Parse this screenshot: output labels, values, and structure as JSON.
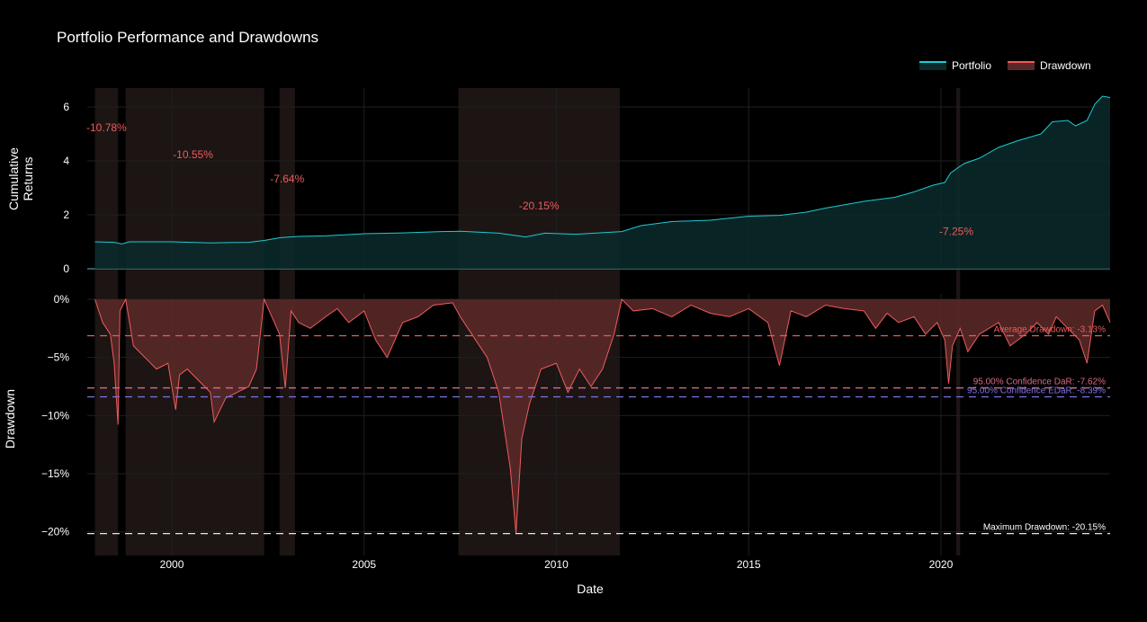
{
  "title": "Portfolio Performance and Drawdowns",
  "legend": {
    "portfolio": "Portfolio",
    "drawdown": "Drawdown"
  },
  "colors": {
    "portfolio_line": "#1ecbd1",
    "portfolio_fill": "#0b2a2b",
    "drawdown_line": "#ef5b5b",
    "drawdown_fill": "#5a2828",
    "shade": "#1c1514",
    "avg_line": "#ef5b5b",
    "dar_line": "#d96a86",
    "edar_line": "#7f73e6",
    "max_line": "#e6e6e6",
    "grid": "#1f1f1f"
  },
  "chart_data": [
    {
      "type": "area",
      "name": "Portfolio",
      "ylabel": "Cumulative\nReturns",
      "ylim": [
        0,
        6.7
      ],
      "yticks": [
        0,
        2,
        4,
        6
      ],
      "x": [
        1998.0,
        1998.5,
        1998.7,
        1998.9,
        1999.5,
        2000.0,
        2000.5,
        2001.0,
        2001.5,
        2002.0,
        2002.4,
        2002.8,
        2003.3,
        2004.0,
        2005.0,
        2006.0,
        2007.0,
        2007.5,
        2008.5,
        2009.2,
        2009.7,
        2010.5,
        2011.0,
        2011.7,
        2012.2,
        2013.0,
        2014.0,
        2015.0,
        2015.8,
        2016.5,
        2017.0,
        2018.0,
        2018.8,
        2019.3,
        2019.8,
        2020.1,
        2020.25,
        2020.6,
        2021.0,
        2021.5,
        2022.0,
        2022.6,
        2022.9,
        2023.3,
        2023.5,
        2023.8,
        2024.0,
        2024.2,
        2024.4
      ],
      "y": [
        1.0,
        0.98,
        0.92,
        1.0,
        1.0,
        1.0,
        0.98,
        0.96,
        0.97,
        0.98,
        1.05,
        1.15,
        1.2,
        1.22,
        1.3,
        1.33,
        1.38,
        1.39,
        1.32,
        1.18,
        1.32,
        1.28,
        1.32,
        1.38,
        1.6,
        1.75,
        1.8,
        1.95,
        1.98,
        2.1,
        2.25,
        2.5,
        2.65,
        2.85,
        3.1,
        3.2,
        3.55,
        3.9,
        4.1,
        4.5,
        4.75,
        5.0,
        5.45,
        5.5,
        5.3,
        5.5,
        6.1,
        6.4,
        6.35
      ],
      "annotations": [
        {
          "text": "-10.78%",
          "x": 1998.3,
          "y": 5.1
        },
        {
          "text": "-10.55%",
          "x": 2000.55,
          "y": 4.1
        },
        {
          "text": "-7.64%",
          "x": 2003.0,
          "y": 3.2
        },
        {
          "text": "-20.15%",
          "x": 2009.55,
          "y": 2.2
        },
        {
          "text": "-7.25%",
          "x": 2020.4,
          "y": 1.25
        }
      ],
      "drawdown_periods": [
        [
          1998.0,
          1998.6
        ],
        [
          1998.8,
          2002.4
        ],
        [
          2002.8,
          2003.2
        ],
        [
          2007.45,
          2011.65
        ],
        [
          2020.4,
          2020.5
        ]
      ]
    },
    {
      "type": "area",
      "name": "Drawdown",
      "xlabel": "Date",
      "ylabel": "Drawdown",
      "ylim": [
        -22,
        0.5
      ],
      "yticks": [
        0,
        -5,
        -10,
        -15,
        -20
      ],
      "ytick_labels": [
        "0%",
        "−5%",
        "−10%",
        "−15%",
        "−20%"
      ],
      "xticks": [
        2000,
        2005,
        2010,
        2015,
        2020
      ],
      "xlim": [
        1997.8,
        2024.4
      ],
      "x": [
        1998.0,
        1998.2,
        1998.4,
        1998.5,
        1998.6,
        1998.65,
        1998.8,
        1999.0,
        1999.3,
        1999.6,
        1999.9,
        2000.1,
        2000.2,
        2000.4,
        2000.7,
        2001.0,
        2001.1,
        2001.4,
        2001.7,
        2002.0,
        2002.2,
        2002.4,
        2002.6,
        2002.8,
        2002.95,
        2003.1,
        2003.3,
        2003.6,
        2004.0,
        2004.3,
        2004.6,
        2005.0,
        2005.3,
        2005.6,
        2006.0,
        2006.4,
        2006.8,
        2007.3,
        2007.5,
        2007.8,
        2008.2,
        2008.5,
        2008.8,
        2008.95,
        2009.1,
        2009.3,
        2009.6,
        2010.0,
        2010.3,
        2010.6,
        2010.9,
        2011.2,
        2011.5,
        2011.7,
        2012.0,
        2012.5,
        2013.0,
        2013.5,
        2014.0,
        2014.5,
        2015.0,
        2015.5,
        2015.8,
        2016.1,
        2016.5,
        2017.0,
        2017.5,
        2018.0,
        2018.3,
        2018.6,
        2018.9,
        2019.3,
        2019.6,
        2019.9,
        2020.1,
        2020.2,
        2020.3,
        2020.5,
        2020.7,
        2021.0,
        2021.5,
        2021.8,
        2022.2,
        2022.5,
        2022.8,
        2023.0,
        2023.3,
        2023.6,
        2023.8,
        2024.0,
        2024.2,
        2024.4
      ],
      "y": [
        0,
        -2.0,
        -3.0,
        -5.5,
        -10.78,
        -1.0,
        0,
        -4.0,
        -5.0,
        -6.0,
        -5.5,
        -9.5,
        -6.5,
        -6.0,
        -7.0,
        -8.0,
        -10.55,
        -8.5,
        -8.0,
        -7.5,
        -6.0,
        0,
        -1.5,
        -3.0,
        -7.64,
        -1.0,
        -2.0,
        -2.5,
        -1.5,
        -0.8,
        -2.0,
        -1.0,
        -3.5,
        -5.0,
        -2.0,
        -1.5,
        -0.5,
        -0.3,
        -1.5,
        -3.0,
        -5.0,
        -8.0,
        -14.5,
        -20.15,
        -12.0,
        -9.0,
        -6.0,
        -5.5,
        -8.0,
        -6.0,
        -7.5,
        -6.0,
        -3.0,
        0,
        -1.0,
        -0.8,
        -1.5,
        -0.5,
        -1.2,
        -1.5,
        -0.8,
        -2.0,
        -5.7,
        -1.0,
        -1.5,
        -0.5,
        -0.8,
        -1.0,
        -2.5,
        -1.2,
        -2.0,
        -1.5,
        -3.0,
        -2.0,
        -3.5,
        -7.25,
        -4.0,
        -2.5,
        -4.5,
        -3.0,
        -2.0,
        -4.0,
        -3.0,
        -2.0,
        -3.0,
        -1.5,
        -2.5,
        -3.5,
        -5.5,
        -1.0,
        -0.5,
        -2.0
      ],
      "reference_lines": [
        {
          "label": "Average Drawdown: -3.13%",
          "y": -3.13,
          "style": "avg"
        },
        {
          "label": "95.00% Confidence DaR: -7.62%",
          "y": -7.62,
          "style": "dar"
        },
        {
          "label": "95.00% Confidence EDaR: -8.39%",
          "y": -8.39,
          "style": "edar"
        },
        {
          "label": "Maximum Drawdown: -20.15%",
          "y": -20.15,
          "style": "max"
        }
      ]
    }
  ]
}
